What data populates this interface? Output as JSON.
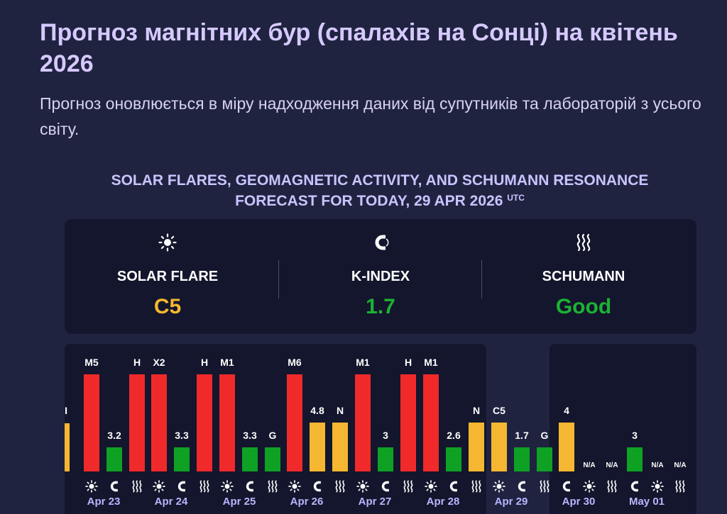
{
  "page": {
    "title": "Прогноз магнітних бур (спалахів на Сонці) на квітень 2026",
    "subtitle": "Прогноз оновлюється в міру надходження даних від супутників та лабораторій з усього світу."
  },
  "forecast_heading": {
    "text": "SOLAR FLARES, GEOMAGNETIC ACTIVITY, AND SCHUMANN RESONANCE FORECAST FOR TODAY, 29 APR 2026",
    "tz": "UTC"
  },
  "summary": [
    {
      "icon": "sun-icon",
      "label": "SOLAR FLARE",
      "value": "C5",
      "color": "#f5b731"
    },
    {
      "icon": "magnet-icon",
      "label": "K-INDEX",
      "value": "1.7",
      "color": "#1db233"
    },
    {
      "icon": "waves-icon",
      "label": "SCHUMANN",
      "value": "Good",
      "color": "#1db233"
    }
  ],
  "colors": {
    "red": "#f02a2a",
    "yellow": "#f5b731",
    "green": "#0fa124"
  },
  "chart_data": {
    "type": "bar",
    "categories": [
      "Apr 23",
      "Apr 24",
      "Apr 25",
      "Apr 26",
      "Apr 27",
      "Apr 28",
      "Apr 29",
      "Apr 30",
      "May 01"
    ],
    "days": [
      {
        "date": "Apr 23",
        "flare": "M5",
        "flare_level": 1.0,
        "flare_color": "red",
        "kindex": "3.2",
        "kindex_level": 0.25,
        "kindex_color": "green",
        "schumann": "H",
        "schumann_level": 1.0,
        "schumann_color": "red",
        "order": [
          "sun",
          "magnet",
          "waves"
        ]
      },
      {
        "date": "Apr 24",
        "flare": "X2",
        "flare_level": 1.0,
        "flare_color": "red",
        "kindex": "3.3",
        "kindex_level": 0.25,
        "kindex_color": "green",
        "schumann": "H",
        "schumann_level": 1.0,
        "schumann_color": "red",
        "order": [
          "sun",
          "magnet",
          "waves"
        ]
      },
      {
        "date": "Apr 25",
        "flare": "M1",
        "flare_level": 1.0,
        "flare_color": "red",
        "kindex": "3.3",
        "kindex_level": 0.25,
        "kindex_color": "green",
        "schumann": "G",
        "schumann_level": 0.25,
        "schumann_color": "green",
        "order": [
          "sun",
          "magnet",
          "waves"
        ]
      },
      {
        "date": "Apr 26",
        "flare": "M6",
        "flare_level": 1.0,
        "flare_color": "red",
        "kindex": "4.8",
        "kindex_level": 0.5,
        "kindex_color": "yellow",
        "schumann": "N",
        "schumann_level": 0.5,
        "schumann_color": "yellow",
        "order": [
          "sun",
          "magnet",
          "waves"
        ]
      },
      {
        "date": "Apr 27",
        "flare": "M1",
        "flare_level": 1.0,
        "flare_color": "red",
        "kindex": "3",
        "kindex_level": 0.25,
        "kindex_color": "green",
        "schumann": "H",
        "schumann_level": 1.0,
        "schumann_color": "red",
        "order": [
          "sun",
          "magnet",
          "waves"
        ]
      },
      {
        "date": "Apr 28",
        "flare": "M1",
        "flare_level": 1.0,
        "flare_color": "red",
        "kindex": "2.6",
        "kindex_level": 0.25,
        "kindex_color": "green",
        "schumann": "N",
        "schumann_level": 0.5,
        "schumann_color": "yellow",
        "order": [
          "sun",
          "magnet",
          "waves"
        ]
      },
      {
        "date": "Apr 29",
        "flare": "C5",
        "flare_level": 0.5,
        "flare_color": "yellow",
        "kindex": "1.7",
        "kindex_level": 0.25,
        "kindex_color": "green",
        "schumann": "G",
        "schumann_level": 0.25,
        "schumann_color": "green",
        "order": [
          "sun",
          "magnet",
          "waves"
        ]
      },
      {
        "date": "Apr 30",
        "flare": "N/A",
        "flare_level": 0,
        "flare_color": "none",
        "kindex": "4",
        "kindex_level": 0.5,
        "kindex_color": "yellow",
        "schumann": "N/A",
        "schumann_level": 0,
        "schumann_color": "none",
        "order": [
          "magnet",
          "sun",
          "waves"
        ]
      },
      {
        "date": "May 01",
        "flare": "N/A",
        "flare_level": 0,
        "flare_color": "none",
        "kindex": "3",
        "kindex_level": 0.25,
        "kindex_color": "green",
        "schumann": "N/A",
        "schumann_level": 0,
        "schumann_color": "none",
        "order": [
          "magnet",
          "sun",
          "waves"
        ]
      }
    ]
  }
}
